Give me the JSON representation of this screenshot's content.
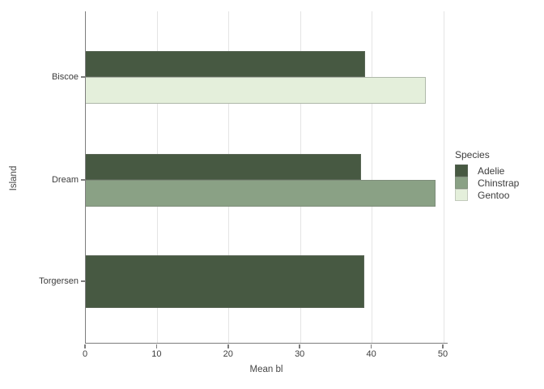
{
  "chart_data": {
    "type": "bar",
    "orientation": "horizontal",
    "xlabel": "Mean bl",
    "ylabel": "Island",
    "categories": [
      "Biscoe",
      "Dream",
      "Torgersen"
    ],
    "series": [
      {
        "name": "Adelie",
        "color": "#475942",
        "values": [
          38.98,
          38.5,
          38.95
        ]
      },
      {
        "name": "Chinstrap",
        "color": "#8AA185",
        "values": [
          null,
          48.83,
          null
        ]
      },
      {
        "name": "Gentoo",
        "color": "#E4EFDB",
        "values": [
          47.5,
          null,
          null
        ]
      }
    ],
    "xlim": [
      0,
      50
    ],
    "xticks": [
      0,
      10,
      20,
      30,
      40,
      50
    ],
    "grid": true,
    "legend": {
      "title": "Species",
      "position": "right"
    }
  },
  "colors": {
    "axis_line": "#7d7d7d",
    "gridline": "#e4e4e4",
    "text": "#3d3d3d",
    "background": "#ffffff"
  }
}
